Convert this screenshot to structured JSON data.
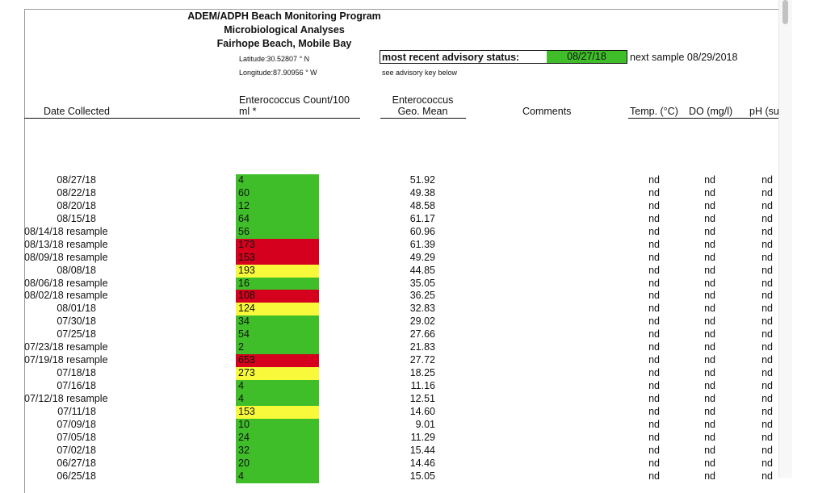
{
  "header": {
    "title_lines": [
      "ADEM/ADPH Beach Monitoring Program",
      "Microbiological Analyses",
      "Fairhope Beach, Mobile Bay"
    ],
    "latitude": "Latitude:30.52807 °  N",
    "longitude": "Longitude:87.90956 °  W"
  },
  "advisory": {
    "label": "most recent advisory status:",
    "date": "08/27/18",
    "next_sample": "next sample 08/29/2018",
    "key_note": "see advisory key below"
  },
  "columns": {
    "date": "Date Collected",
    "count_line1": "Enterococcus Count/100",
    "count_line2": "ml *",
    "geo_line1": "Enterococcus",
    "geo_line2": "Geo. Mean",
    "comments": "Comments",
    "temp": "Temp. (°C)",
    "do": "DO (mg/l)",
    "ph": "pH (su"
  },
  "colors": {
    "green": "#3fbe29",
    "red": "#d4001d",
    "yellow": "#f7f93a"
  },
  "rows": [
    {
      "date": "08/27/18",
      "count": "4",
      "status": "green",
      "geo": "51.92",
      "temp": "nd",
      "do": "nd",
      "ph": "nd"
    },
    {
      "date": "08/22/18",
      "count": "60",
      "status": "green",
      "geo": "49.38",
      "temp": "nd",
      "do": "nd",
      "ph": "nd"
    },
    {
      "date": "08/20/18",
      "count": "12",
      "status": "green",
      "geo": "48.58",
      "temp": "nd",
      "do": "nd",
      "ph": "nd"
    },
    {
      "date": "08/15/18",
      "count": "64",
      "status": "green",
      "geo": "61.17",
      "temp": "nd",
      "do": "nd",
      "ph": "nd"
    },
    {
      "date": "08/14/18 resample",
      "count": "56",
      "status": "green",
      "geo": "60.96",
      "temp": "nd",
      "do": "nd",
      "ph": "nd"
    },
    {
      "date": "08/13/18 resample",
      "count": "173",
      "status": "red",
      "geo": "61.39",
      "temp": "nd",
      "do": "nd",
      "ph": "nd"
    },
    {
      "date": "08/09/18 resample",
      "count": "153",
      "status": "red",
      "geo": "49.29",
      "temp": "nd",
      "do": "nd",
      "ph": "nd"
    },
    {
      "date": "08/08/18",
      "count": "193",
      "status": "yellow",
      "geo": "44.85",
      "temp": "nd",
      "do": "nd",
      "ph": "nd"
    },
    {
      "date": "08/06/18 resample",
      "count": "16",
      "status": "green",
      "geo": "35.05",
      "temp": "nd",
      "do": "nd",
      "ph": "nd"
    },
    {
      "date": "08/02/18 resample",
      "count": "108",
      "status": "red",
      "geo": "36.25",
      "temp": "nd",
      "do": "nd",
      "ph": "nd"
    },
    {
      "date": "08/01/18",
      "count": "124",
      "status": "yellow",
      "geo": "32.83",
      "temp": "nd",
      "do": "nd",
      "ph": "nd"
    },
    {
      "date": "07/30/18",
      "count": "34",
      "status": "green",
      "geo": "29.02",
      "temp": "nd",
      "do": "nd",
      "ph": "nd"
    },
    {
      "date": "07/25/18",
      "count": "54",
      "status": "green",
      "geo": "27.66",
      "temp": "nd",
      "do": "nd",
      "ph": "nd"
    },
    {
      "date": "07/23/18 resample",
      "count": "2",
      "status": "green",
      "geo": "21.83",
      "temp": "nd",
      "do": "nd",
      "ph": "nd"
    },
    {
      "date": "07/19/18 resample",
      "count": "653",
      "status": "red",
      "geo": "27.72",
      "temp": "nd",
      "do": "nd",
      "ph": "nd"
    },
    {
      "date": "07/18/18",
      "count": "273",
      "status": "yellow",
      "geo": "18.25",
      "temp": "nd",
      "do": "nd",
      "ph": "nd"
    },
    {
      "date": "07/16/18",
      "count": "4",
      "status": "green",
      "geo": "11.16",
      "temp": "nd",
      "do": "nd",
      "ph": "nd"
    },
    {
      "date": "07/12/18 resample",
      "count": "4",
      "status": "green",
      "geo": "12.51",
      "temp": "nd",
      "do": "nd",
      "ph": "nd"
    },
    {
      "date": "07/11/18",
      "count": "153",
      "status": "yellow",
      "geo": "14.60",
      "temp": "nd",
      "do": "nd",
      "ph": "nd"
    },
    {
      "date": "07/09/18",
      "count": "10",
      "status": "green",
      "geo": "9.01",
      "temp": "nd",
      "do": "nd",
      "ph": "nd"
    },
    {
      "date": "07/05/18",
      "count": "24",
      "status": "green",
      "geo": "11.29",
      "temp": "nd",
      "do": "nd",
      "ph": "nd"
    },
    {
      "date": "07/02/18",
      "count": "32",
      "status": "green",
      "geo": "15.44",
      "temp": "nd",
      "do": "nd",
      "ph": "nd"
    },
    {
      "date": "06/27/18",
      "count": "20",
      "status": "green",
      "geo": "14.46",
      "temp": "nd",
      "do": "nd",
      "ph": "nd"
    },
    {
      "date": "06/25/18",
      "count": "4",
      "status": "green",
      "geo": "15.05",
      "temp": "nd",
      "do": "nd",
      "ph": "nd"
    }
  ]
}
